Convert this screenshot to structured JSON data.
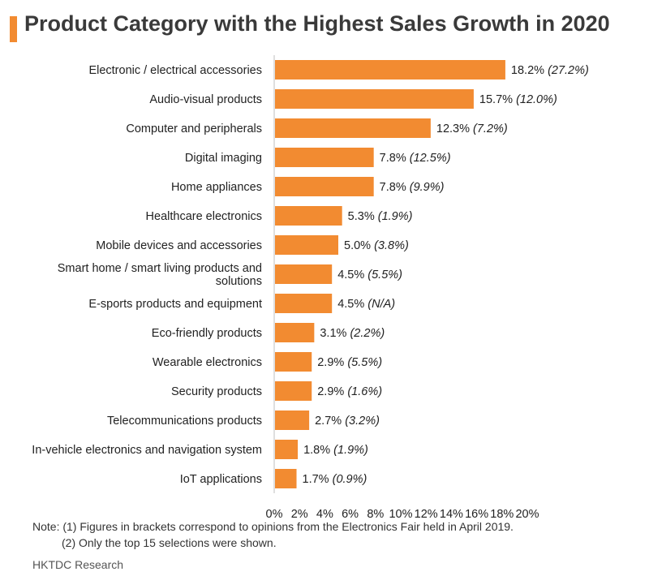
{
  "header": {
    "title": "Product Category with the Highest Sales Growth in 2020",
    "accent_color": "#f28b31"
  },
  "chart_data": {
    "type": "bar",
    "orientation": "horizontal",
    "title": "Product Category with the Highest Sales Growth in 2020",
    "xlabel": "",
    "ylabel": "",
    "xlim": [
      0,
      20
    ],
    "x_ticks": [
      "0%",
      "2%",
      "4%",
      "6%",
      "8%",
      "10%",
      "12%",
      "14%",
      "16%",
      "18%",
      "20%"
    ],
    "bar_color": "#f28b31",
    "grid": false,
    "categories": [
      [
        "Electronic / electrical accessories"
      ],
      [
        "Audio-visual products"
      ],
      [
        "Computer and peripherals"
      ],
      [
        "Digital imaging"
      ],
      [
        "Home appliances"
      ],
      [
        "Healthcare electronics"
      ],
      [
        "Mobile devices and accessories"
      ],
      [
        "Smart home / smart living products and",
        "solutions"
      ],
      [
        "E-sports products and equipment"
      ],
      [
        "Eco-friendly products"
      ],
      [
        "Wearable electronics"
      ],
      [
        "Security products"
      ],
      [
        "Telecommunications products"
      ],
      [
        "In-vehicle electronics and navigation system"
      ],
      [
        "IoT applications"
      ]
    ],
    "values": [
      18.2,
      15.7,
      12.3,
      7.8,
      7.8,
      5.3,
      5.0,
      4.5,
      4.5,
      3.1,
      2.9,
      2.9,
      2.7,
      1.8,
      1.7
    ],
    "value_labels": [
      "18.2%",
      "15.7%",
      "12.3%",
      "7.8%",
      "7.8%",
      "5.3%",
      "5.0%",
      "4.5%",
      "4.5%",
      "3.1%",
      "2.9%",
      "2.9%",
      "2.7%",
      "1.8%",
      "1.7%"
    ],
    "prior_labels": [
      "(27.2%)",
      "(12.0%)",
      "(7.2%)",
      "(12.5%)",
      "(9.9%)",
      "(1.9%)",
      "(3.8%)",
      "(5.5%)",
      "(N/A)",
      "(2.2%)",
      "(5.5%)",
      "(1.6%)",
      "(3.2%)",
      "(1.9%)",
      "(0.9%)"
    ]
  },
  "notes": {
    "line1": "Note: (1) Figures in brackets correspond to opinions from the Electronics Fair held in April 2019.",
    "line2": "(2) Only the top 15 selections were shown."
  },
  "source": "HKTDC Research"
}
